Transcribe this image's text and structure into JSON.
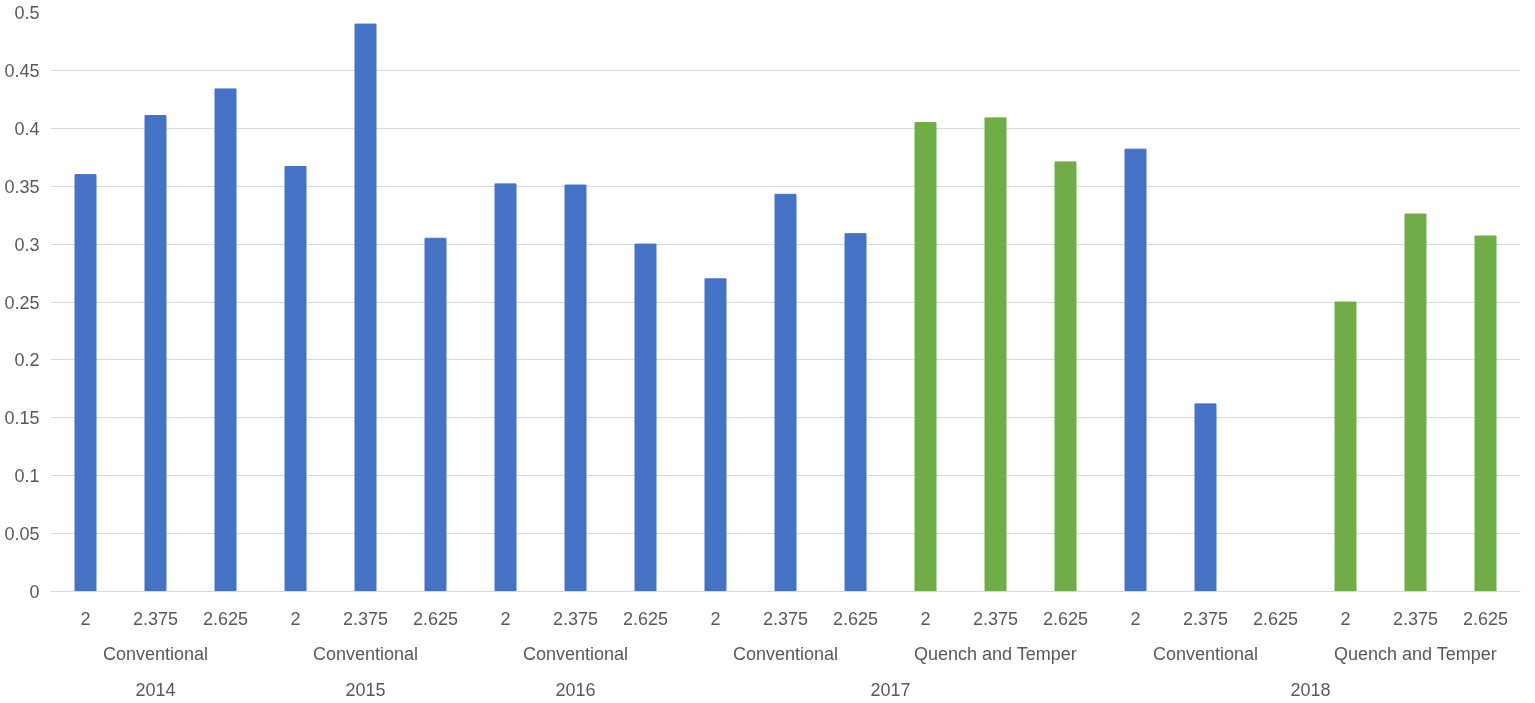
{
  "chart_data": {
    "type": "bar",
    "categories": [
      "2",
      "2.375",
      "2.625",
      "2",
      "2.375",
      "2.625",
      "2",
      "2.375",
      "2.625",
      "2",
      "2.375",
      "2.625",
      "2",
      "2.375",
      "2.625",
      "2",
      "2.375",
      "2.625",
      "2",
      "2.375",
      "2.625"
    ],
    "values": [
      0.36,
      0.411,
      0.434,
      0.367,
      0.49,
      0.305,
      0.352,
      0.351,
      0.3,
      0.27,
      0.343,
      0.309,
      0.405,
      0.409,
      0.371,
      0.382,
      0.162,
      null,
      0.25,
      0.326,
      0.307
    ],
    "colors": [
      "#4472c4",
      "#4472c4",
      "#4472c4",
      "#4472c4",
      "#4472c4",
      "#4472c4",
      "#4472c4",
      "#4472c4",
      "#4472c4",
      "#4472c4",
      "#4472c4",
      "#4472c4",
      "#70ad47",
      "#70ad47",
      "#70ad47",
      "#4472c4",
      "#4472c4",
      "#4472c4",
      "#70ad47",
      "#70ad47",
      "#70ad47"
    ],
    "annotations": [
      "Conventional",
      "Conventional",
      "Conventional",
      "Conventional",
      "Quench and Temper",
      "Conventional",
      "Quench and Temper",
      "2014",
      "2015",
      "2016",
      "2017",
      "2018"
    ],
    "ylim": [
      0,
      0.5
    ],
    "yticks": [
      0,
      0.05,
      0.1,
      0.15,
      0.2,
      0.25,
      0.3,
      0.35,
      0.4,
      0.45,
      0.5
    ],
    "grid": "y"
  }
}
